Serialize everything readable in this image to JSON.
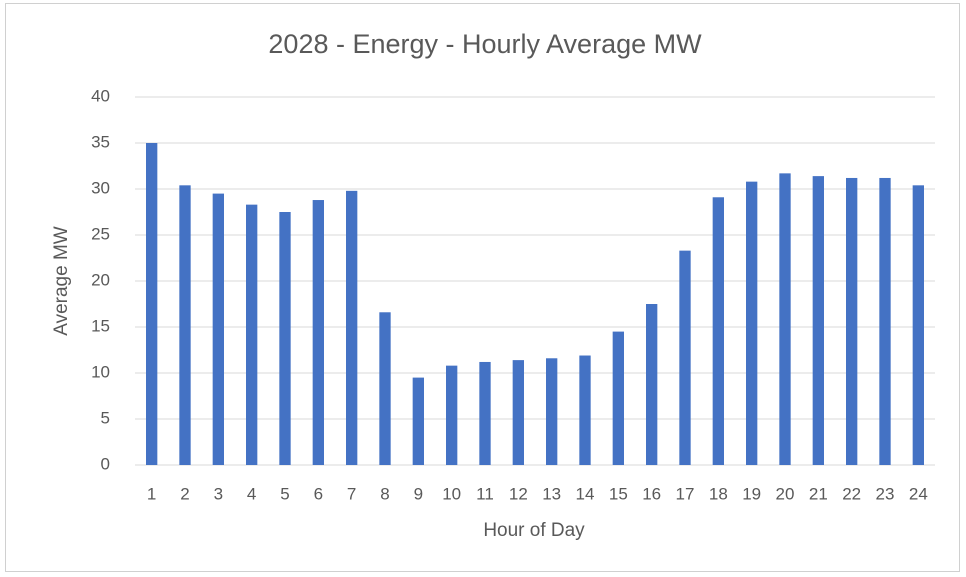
{
  "chart_data": {
    "type": "bar",
    "title": "2028 - Energy - Hourly Average MW",
    "x_label": "Hour of Day",
    "y_label": "Average MW",
    "categories": [
      "1",
      "2",
      "3",
      "4",
      "5",
      "6",
      "7",
      "8",
      "9",
      "10",
      "11",
      "12",
      "13",
      "14",
      "15",
      "16",
      "17",
      "18",
      "19",
      "20",
      "21",
      "22",
      "23",
      "24"
    ],
    "values": [
      35,
      30.4,
      29.5,
      28.3,
      27.5,
      28.8,
      29.8,
      16.6,
      9.5,
      10.8,
      11.2,
      11.4,
      11.6,
      11.9,
      14.5,
      17.5,
      23.3,
      29.1,
      30.8,
      31.7,
      31.4,
      31.2,
      31.2,
      30.4
    ],
    "color": "#4472c4",
    "ylim": [
      0,
      40
    ],
    "yticks": [
      0,
      5,
      10,
      15,
      20,
      25,
      30,
      35,
      40
    ],
    "grid": true
  }
}
